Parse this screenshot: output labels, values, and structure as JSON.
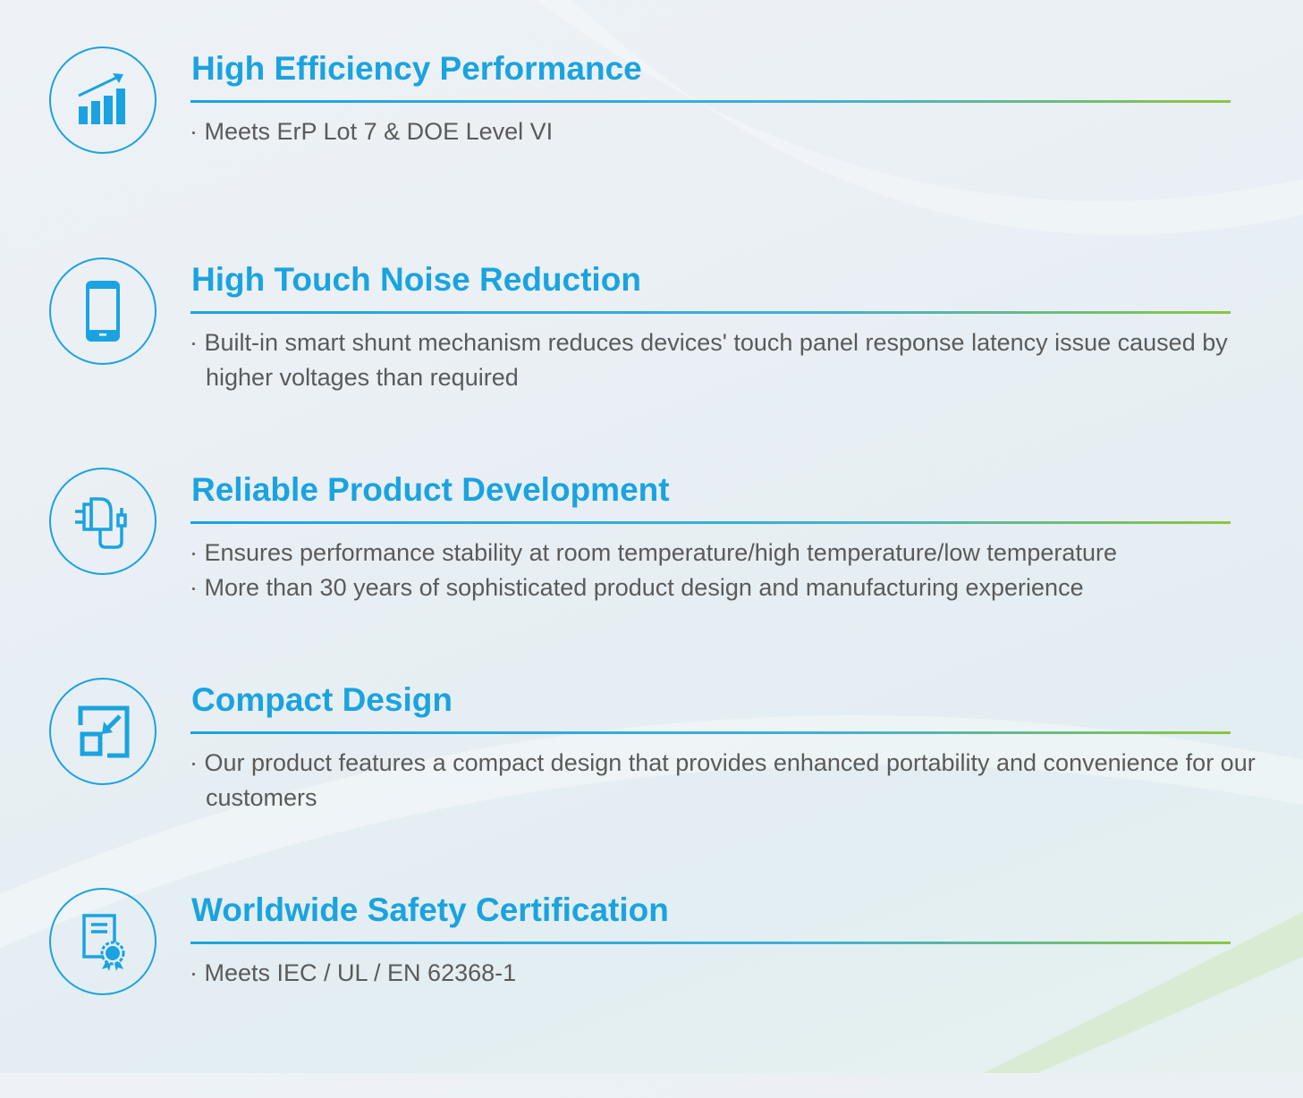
{
  "colors": {
    "accent": "#1aa3e0",
    "rule_end": "#8cc63f",
    "body_text": "#5a5a5a"
  },
  "features": [
    {
      "icon": "bar-chart-growth-icon",
      "title": "High Efficiency Performance",
      "bullets": [
        "· Meets ErP Lot 7 & DOE Level VI"
      ]
    },
    {
      "icon": "smartphone-icon",
      "title": "High Touch Noise Reduction",
      "bullets": [
        "· Built-in smart shunt mechanism reduces devices' touch panel response latency issue caused by higher voltages than required"
      ]
    },
    {
      "icon": "charger-adapter-icon",
      "title": "Reliable Product Development",
      "bullets": [
        "· Ensures performance stability at room temperature/high temperature/low temperature",
        "· More than 30 years of sophisticated product  design and manufacturing experience"
      ]
    },
    {
      "icon": "compact-resize-icon",
      "title": "Compact Design",
      "bullets": [
        "· Our product features a compact design that provides enhanced portability and convenience for our customers"
      ]
    },
    {
      "icon": "certificate-icon",
      "title": "Worldwide Safety Certification",
      "bullets": [
        "· Meets IEC / UL / EN 62368-1"
      ]
    }
  ]
}
